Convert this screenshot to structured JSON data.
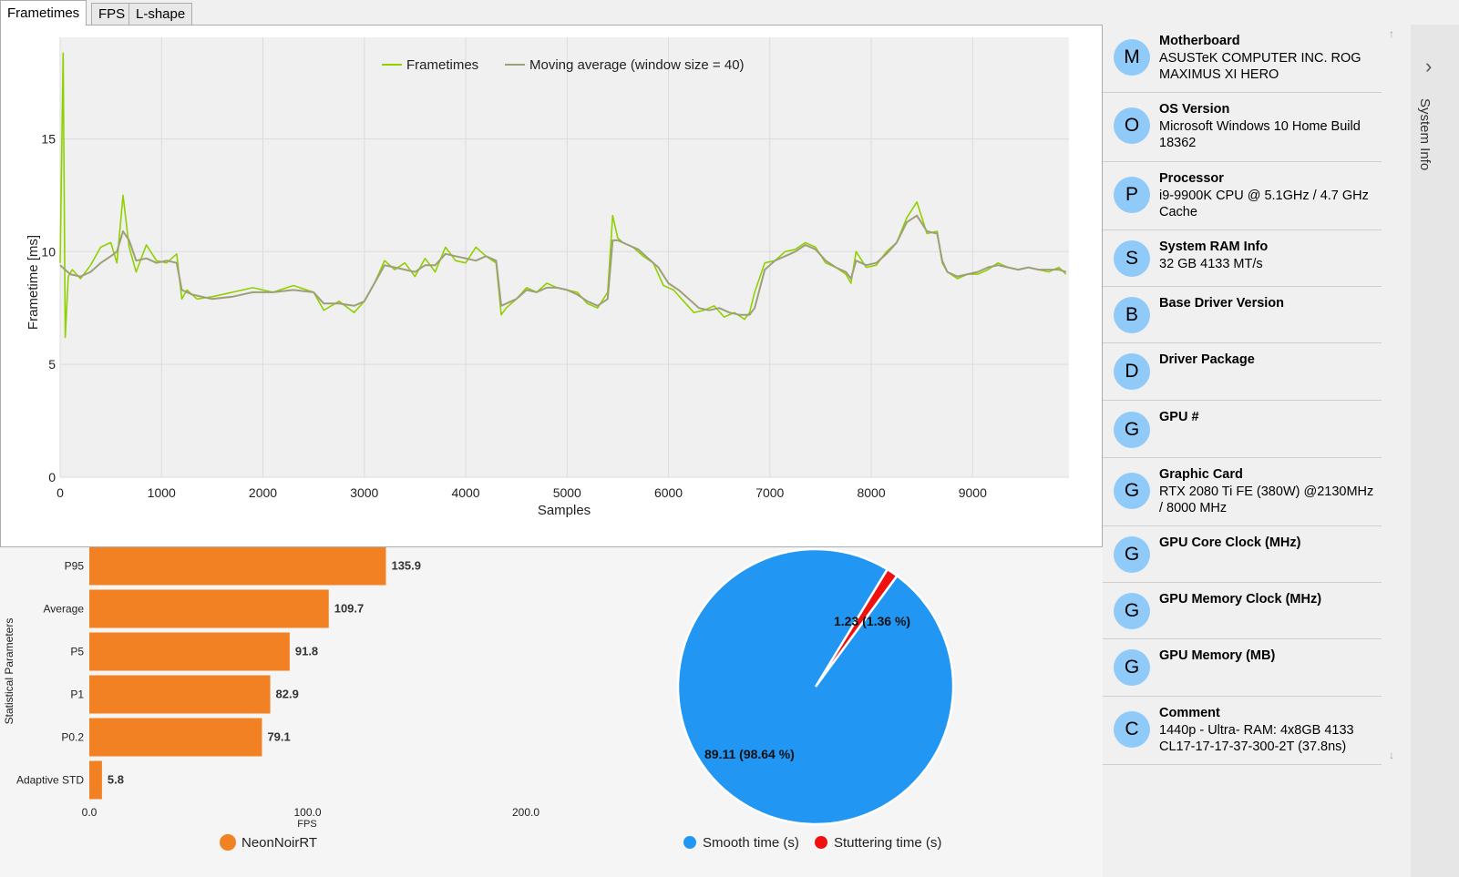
{
  "tabs": [
    {
      "label": "Frametimes",
      "active": true
    },
    {
      "label": "FPS",
      "active": false
    },
    {
      "label": "L-shape",
      "active": false
    }
  ],
  "colors": {
    "frametime_line": "#8fd100",
    "moving_avg_line": "#9e9e7a",
    "bar": "#f28123",
    "pie_smooth": "#2196f3",
    "pie_stutter": "#ef1010",
    "avatar": "#90caf9"
  },
  "chart_data": [
    {
      "type": "line",
      "title": "",
      "xlabel": "Samples",
      "ylabel": "Frametime [ms]",
      "xlim": [
        0,
        9950
      ],
      "ylim": [
        0,
        19.5
      ],
      "x_ticks": [
        "0",
        "1000",
        "2000",
        "3000",
        "4000",
        "5000",
        "6000",
        "7000",
        "8000",
        "9000"
      ],
      "y_ticks": [
        "0",
        "5",
        "10",
        "15"
      ],
      "grid": true,
      "legend_position": "top-center",
      "series": [
        {
          "name": "Frametimes",
          "x": [
            0,
            30,
            50,
            80,
            120,
            200,
            300,
            400,
            500,
            560,
            620,
            680,
            750,
            850,
            950,
            1050,
            1150,
            1200,
            1250,
            1350,
            1500,
            1700,
            1900,
            2100,
            2300,
            2500,
            2600,
            2750,
            2900,
            3000,
            3100,
            3200,
            3300,
            3400,
            3500,
            3600,
            3700,
            3800,
            3900,
            4000,
            4100,
            4200,
            4300,
            4350,
            4400,
            4500,
            4600,
            4700,
            4800,
            4900,
            5000,
            5100,
            5200,
            5300,
            5400,
            5450,
            5500,
            5550,
            5650,
            5750,
            5850,
            5950,
            6050,
            6150,
            6250,
            6350,
            6450,
            6550,
            6650,
            6750,
            6800,
            6850,
            6950,
            7050,
            7150,
            7250,
            7350,
            7450,
            7550,
            7650,
            7750,
            7800,
            7850,
            7950,
            8050,
            8150,
            8250,
            8350,
            8450,
            8550,
            8650,
            8700,
            8750,
            8850,
            8950,
            9050,
            9150,
            9250,
            9350,
            9450,
            9550,
            9650,
            9750,
            9850,
            9920
          ],
          "values": [
            9.5,
            18.8,
            6.2,
            8.9,
            9.2,
            8.8,
            9.4,
            10.2,
            10.4,
            9.5,
            12.5,
            10.2,
            9.1,
            10.3,
            9.6,
            9.5,
            9.9,
            7.9,
            8.3,
            7.9,
            8.0,
            8.2,
            8.4,
            8.2,
            8.5,
            8.2,
            7.4,
            7.8,
            7.3,
            7.8,
            8.6,
            9.6,
            9.2,
            9.5,
            8.9,
            9.7,
            9.1,
            10.2,
            9.6,
            9.5,
            10.2,
            9.8,
            9.5,
            7.2,
            7.5,
            7.9,
            8.4,
            8.2,
            8.6,
            8.4,
            8.3,
            8.2,
            7.7,
            7.5,
            8.2,
            11.6,
            10.6,
            10.4,
            10.2,
            9.8,
            9.5,
            8.5,
            8.3,
            7.8,
            7.3,
            7.4,
            7.6,
            7.1,
            7.3,
            7.0,
            7.3,
            8.2,
            9.5,
            9.6,
            10.0,
            10.1,
            10.4,
            10.2,
            9.5,
            9.3,
            9.0,
            8.6,
            10.0,
            9.3,
            9.4,
            10.0,
            10.4,
            11.5,
            12.2,
            10.8,
            10.9,
            9.5,
            9.1,
            8.8,
            9.0,
            9.0,
            9.2,
            9.5,
            9.3,
            9.2,
            9.3,
            9.2,
            9.1,
            9.3,
            9.0
          ]
        },
        {
          "name": "Moving average (window size = 40)",
          "x": [
            0,
            100,
            200,
            300,
            400,
            500,
            560,
            620,
            680,
            750,
            850,
            950,
            1050,
            1150,
            1200,
            1300,
            1500,
            1700,
            1900,
            2100,
            2300,
            2500,
            2600,
            2750,
            2900,
            3000,
            3100,
            3200,
            3300,
            3400,
            3500,
            3600,
            3700,
            3800,
            3900,
            4000,
            4100,
            4200,
            4300,
            4350,
            4400,
            4500,
            4600,
            4700,
            4800,
            4900,
            5000,
            5100,
            5200,
            5300,
            5400,
            5450,
            5500,
            5600,
            5700,
            5800,
            5900,
            6000,
            6100,
            6200,
            6300,
            6400,
            6500,
            6600,
            6700,
            6800,
            6850,
            6950,
            7050,
            7150,
            7250,
            7350,
            7450,
            7550,
            7650,
            7750,
            7800,
            7850,
            7950,
            8050,
            8150,
            8250,
            8350,
            8450,
            8550,
            8650,
            8700,
            8750,
            8850,
            8950,
            9050,
            9150,
            9250,
            9350,
            9450,
            9550,
            9650,
            9750,
            9850,
            9920
          ],
          "values": [
            9.4,
            9.0,
            8.9,
            9.1,
            9.5,
            9.8,
            10.0,
            10.9,
            10.5,
            9.6,
            9.7,
            9.5,
            9.6,
            9.5,
            8.3,
            8.1,
            7.9,
            8.0,
            8.2,
            8.2,
            8.3,
            8.2,
            7.7,
            7.7,
            7.6,
            7.8,
            8.6,
            9.4,
            9.3,
            9.2,
            9.1,
            9.4,
            9.4,
            9.9,
            9.8,
            9.7,
            9.6,
            9.8,
            9.6,
            7.6,
            7.7,
            7.9,
            8.3,
            8.2,
            8.4,
            8.4,
            8.3,
            8.1,
            7.8,
            7.6,
            7.9,
            10.5,
            10.5,
            10.3,
            10.1,
            9.7,
            9.3,
            8.6,
            8.3,
            7.9,
            7.5,
            7.4,
            7.5,
            7.3,
            7.2,
            7.2,
            7.5,
            9.2,
            9.6,
            9.8,
            10.0,
            10.3,
            10.1,
            9.6,
            9.3,
            9.1,
            8.8,
            9.6,
            9.4,
            9.5,
            9.9,
            10.4,
            11.3,
            11.6,
            10.9,
            10.8,
            9.6,
            9.1,
            8.9,
            9.0,
            9.1,
            9.3,
            9.4,
            9.3,
            9.2,
            9.3,
            9.2,
            9.2,
            9.2,
            9.1
          ]
        }
      ]
    },
    {
      "type": "bar",
      "orientation": "horizontal",
      "title": "",
      "xlabel": "FPS",
      "ylabel": "Statistical Parameters",
      "xlim": [
        0,
        200
      ],
      "x_ticks": [
        "0.0",
        "100.0",
        "200.0"
      ],
      "categories": [
        "P95",
        "Average",
        "P5",
        "P1",
        "P0.2",
        "Adaptive STD"
      ],
      "values": [
        135.9,
        109.7,
        91.8,
        82.9,
        79.1,
        5.8
      ],
      "data_labels": [
        "135.9",
        "109.7",
        "91.8",
        "82.9",
        "79.1",
        "5.8"
      ],
      "legend": [
        "NeonNoirRT"
      ],
      "legend_position": "bottom"
    },
    {
      "type": "pie",
      "title": "",
      "categories": [
        "Smooth time (s)",
        "Stuttering time (s)"
      ],
      "values": [
        89.11,
        1.23
      ],
      "percents": [
        98.64,
        1.36
      ],
      "data_labels": [
        "89.11 (98.64 %)",
        "1.23 (1.36 %)"
      ],
      "legend_position": "bottom"
    }
  ],
  "sidebar": {
    "section_label": "System Info",
    "items": [
      {
        "initial": "M",
        "title": "Motherboard",
        "value": "ASUSTeK COMPUTER INC. ROG MAXIMUS XI HERO"
      },
      {
        "initial": "O",
        "title": "OS Version",
        "value": "Microsoft Windows 10 Home Build 18362"
      },
      {
        "initial": "P",
        "title": "Processor",
        "value": "i9-9900K CPU @ 5.1GHz / 4.7 GHz Cache"
      },
      {
        "initial": "S",
        "title": "System RAM Info",
        "value": "32 GB 4133 MT/s"
      },
      {
        "initial": "B",
        "title": "Base Driver Version",
        "value": ""
      },
      {
        "initial": "D",
        "title": "Driver Package",
        "value": ""
      },
      {
        "initial": "G",
        "title": "GPU #",
        "value": ""
      },
      {
        "initial": "G",
        "title": "Graphic Card",
        "value": "RTX 2080 Ti FE (380W) @2130MHz / 8000 MHz"
      },
      {
        "initial": "G",
        "title": "GPU Core Clock (MHz)",
        "value": ""
      },
      {
        "initial": "G",
        "title": "GPU Memory Clock (MHz)",
        "value": ""
      },
      {
        "initial": "G",
        "title": "GPU Memory (MB)",
        "value": ""
      },
      {
        "initial": "C",
        "title": "Comment",
        "value": "1440p - Ultra- RAM: 4x8GB 4133 CL17-17-17-37-300-2T (37.8ns)"
      }
    ],
    "icons": [
      "chevron-right-icon",
      "scroll-up-arrow-icon",
      "scroll-down-arrow-icon"
    ]
  }
}
